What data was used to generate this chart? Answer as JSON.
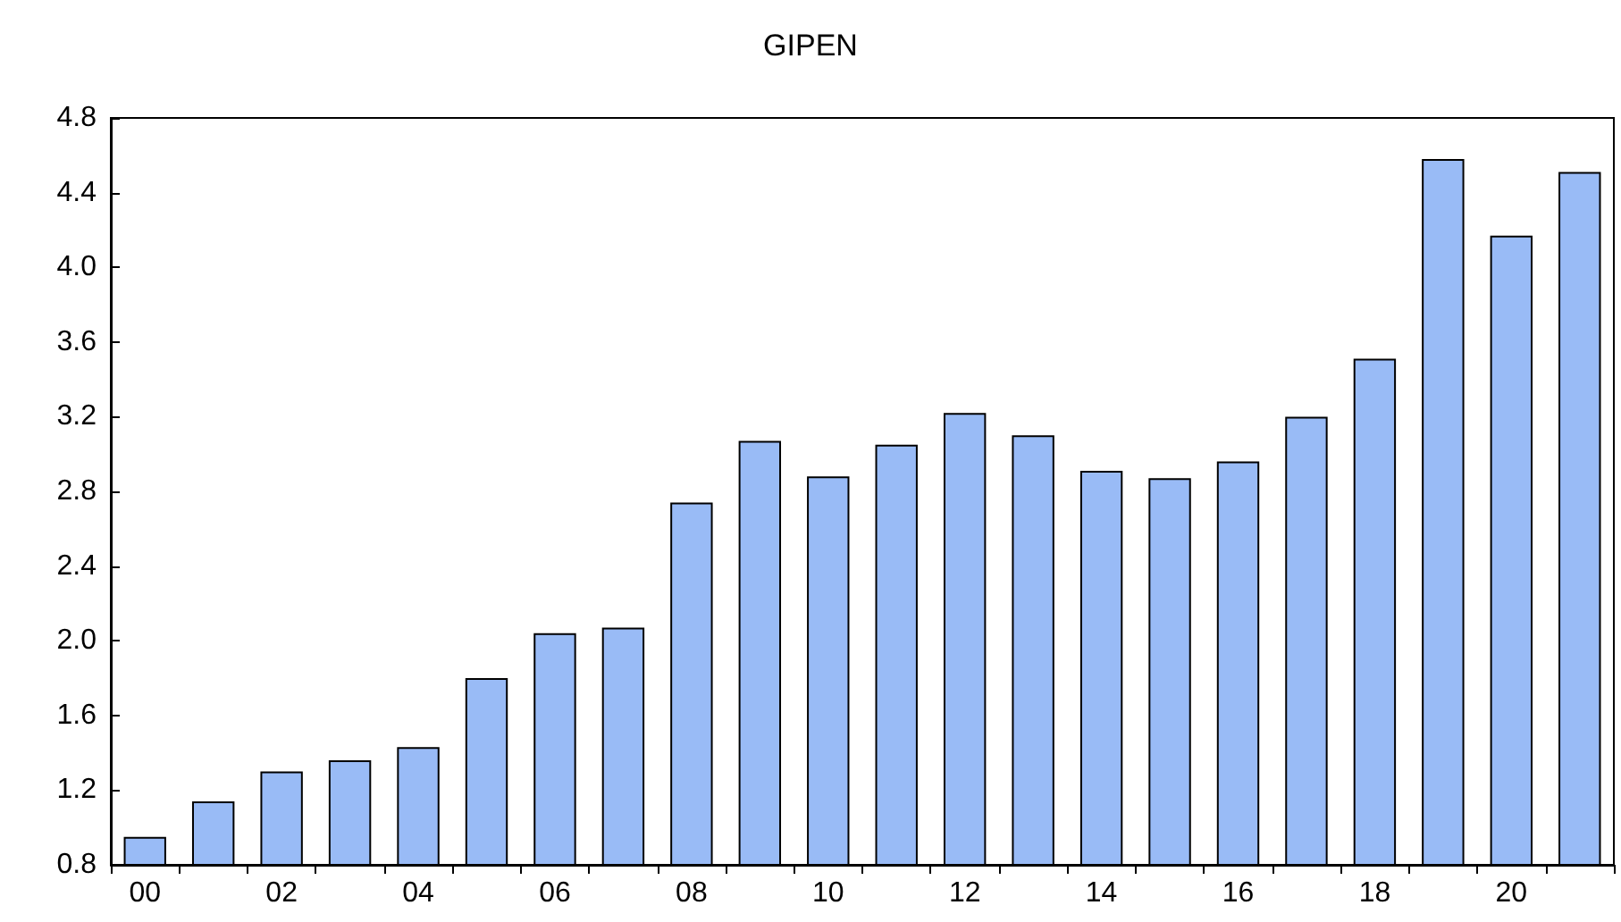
{
  "chart_data": {
    "type": "bar",
    "title": "GIPEN",
    "categories": [
      "00",
      null,
      "02",
      null,
      "04",
      null,
      "06",
      null,
      "08",
      null,
      "10",
      null,
      "12",
      null,
      "14",
      null,
      "16",
      null,
      "18",
      null,
      "20",
      null
    ],
    "values": [
      0.95,
      1.14,
      1.3,
      1.36,
      1.43,
      1.8,
      2.04,
      2.07,
      2.74,
      3.07,
      2.88,
      3.05,
      3.22,
      3.1,
      2.91,
      2.87,
      2.96,
      3.2,
      3.51,
      4.58,
      4.17,
      4.51
    ],
    "color": "#99bbf6",
    "ylim": [
      0.8,
      4.8
    ],
    "yticks": [
      0.8,
      1.2,
      1.6,
      {
        "value": 2.0,
        "label": "2.0"
      },
      2.4,
      2.8,
      3.2,
      3.6,
      {
        "value": 4.0,
        "label": "4.0"
      },
      4.4,
      4.8
    ],
    "grid": false
  }
}
